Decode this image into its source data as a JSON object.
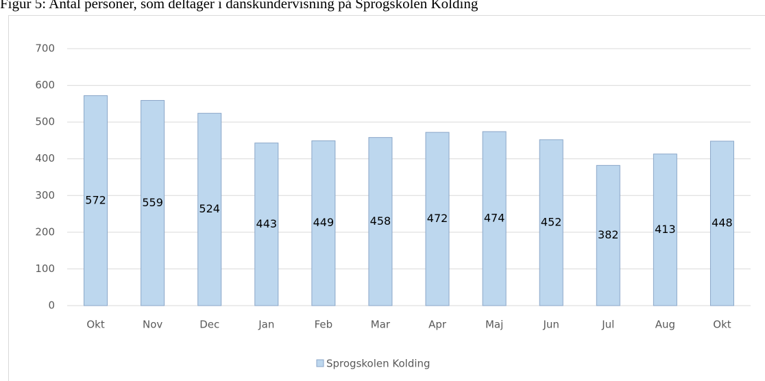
{
  "chart_data": {
    "type": "bar",
    "title": "Figur 5: Antal personer, som deltager i danskundervisning på Sprogskolen Kolding",
    "categories": [
      "Okt",
      "Nov",
      "Dec",
      "Jan",
      "Feb",
      "Mar",
      "Apr",
      "Maj",
      "Jun",
      "Jul",
      "Aug",
      "Okt"
    ],
    "series": [
      {
        "name": "Sprogskolen Kolding",
        "color": "#bdd7ee",
        "values": [
          572,
          559,
          524,
          443,
          449,
          458,
          472,
          474,
          452,
          382,
          413,
          448
        ]
      }
    ],
    "ylim": [
      0,
      700
    ],
    "yticks": [
      0,
      100,
      200,
      300,
      400,
      500,
      600,
      700
    ],
    "grid": true,
    "legend": "bottom",
    "data_labels": true
  }
}
